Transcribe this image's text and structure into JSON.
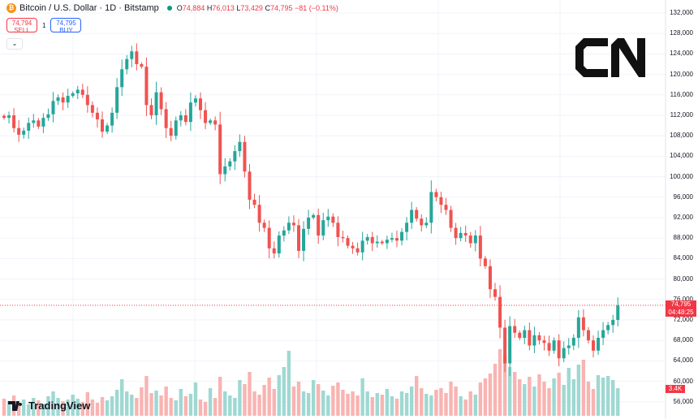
{
  "header": {
    "symbol_icon": "bitcoin-icon",
    "title": "Bitcoin / U.S. Dollar · 1D · Bitstamp",
    "market_status": "open",
    "ohlc": {
      "o_label": "O",
      "o": "74,884",
      "h_label": "H",
      "h": "76,013",
      "l_label": "L",
      "l": "73,429",
      "c_label": "C",
      "c": "74,795",
      "change": "−81 (−0.11%)"
    }
  },
  "trade": {
    "sell_price": "74,794",
    "sell_label": "SELL",
    "spread": "1",
    "buy_price": "74,795",
    "buy_label": "BUY"
  },
  "price_axis": {
    "ticks": [
      "132,000",
      "128,000",
      "124,000",
      "120,000",
      "116,000",
      "112,000",
      "108,000",
      "104,000",
      "100,000",
      "96,000",
      "92,000",
      "88,000",
      "84,000",
      "80,000",
      "76,000",
      "72,000",
      "68,000",
      "64,000",
      "60,000",
      "56,000"
    ],
    "last_price": "74,795",
    "countdown": "04:48:25",
    "volume_label": "3.4K"
  },
  "branding": {
    "tradingview": "TradingView",
    "watermark": "CN"
  },
  "colors": {
    "up": "#26a69a",
    "down": "#ef5350",
    "up_volume": "#9fd8d2",
    "down_volume": "#f8b4b2"
  },
  "chart_data": {
    "type": "candlestick",
    "interval": "1D",
    "ylim": [
      54000,
      134000
    ],
    "closes": [
      111500,
      112000,
      109500,
      108200,
      109000,
      110500,
      111000,
      109800,
      111500,
      112200,
      114800,
      115500,
      114500,
      115800,
      116300,
      117000,
      116000,
      114000,
      112500,
      111200,
      108800,
      110000,
      112500,
      117500,
      121000,
      123000,
      124500,
      122000,
      121500,
      114000,
      112000,
      116500,
      113200,
      109500,
      108000,
      111000,
      112000,
      110700,
      114500,
      115300,
      113000,
      110500,
      111000,
      110200,
      100500,
      102000,
      103000,
      105000,
      106800,
      101000,
      95500,
      94500,
      91000,
      90000,
      86000,
      85000,
      88500,
      89500,
      91000,
      90500,
      85500,
      89800,
      92000,
      92500,
      88500,
      91500,
      92200,
      91000,
      88200,
      88000,
      86500,
      86000,
      85200,
      87500,
      88200,
      87000,
      87300,
      87000,
      87700,
      88000,
      87500,
      89200,
      91000,
      93500,
      91800,
      90500,
      91000,
      97000,
      96000,
      94500,
      93500,
      90000,
      88000,
      89000,
      88500,
      87000,
      88500,
      84000,
      82500,
      78000,
      76500,
      70500,
      63500,
      70800,
      69500,
      68500,
      70000,
      67000,
      69000,
      68000,
      67500,
      66000,
      68000,
      64500,
      66500,
      67000,
      68500,
      72500,
      70000,
      68000,
      66000,
      68500,
      70000,
      71000,
      72000,
      74795
    ],
    "volumes_k": [
      2.1,
      1.8,
      2.5,
      1.6,
      2.0,
      1.4,
      2.2,
      1.9,
      1.5,
      2.4,
      3.0,
      2.2,
      1.8,
      2.0,
      2.6,
      2.1,
      1.7,
      2.9,
      2.0,
      1.6,
      2.3,
      1.9,
      2.4,
      3.2,
      4.5,
      3.0,
      2.6,
      2.2,
      3.5,
      4.9,
      2.8,
      3.1,
      2.5,
      3.6,
      2.2,
      1.9,
      3.3,
      2.4,
      2.7,
      4.1,
      2.0,
      1.7,
      3.4,
      2.2,
      4.8,
      3.0,
      2.5,
      2.2,
      4.4,
      3.9,
      5.4,
      3.0,
      2.6,
      3.8,
      4.7,
      3.3,
      5.0,
      6.0,
      8.0,
      3.6,
      4.2,
      3.0,
      2.8,
      4.4,
      3.9,
      3.1,
      2.5,
      3.7,
      4.1,
      3.2,
      2.7,
      3.0,
      2.5,
      4.6,
      3.0,
      2.3,
      2.8,
      2.6,
      3.3,
      2.4,
      2.1,
      3.0,
      2.8,
      3.6,
      4.9,
      3.4,
      2.7,
      2.5,
      3.2,
      3.4,
      2.8,
      4.2,
      3.6,
      2.4,
      2.0,
      3.0,
      2.6,
      4.1,
      4.6,
      5.2,
      6.4,
      8.2,
      7.6,
      6.0,
      5.4,
      4.5,
      3.9,
      4.8,
      3.6,
      5.1,
      4.2,
      3.4,
      4.6,
      5.3,
      3.8,
      5.9,
      4.5,
      6.3,
      6.9,
      4.2,
      3.3,
      5.0,
      4.7,
      4.9,
      4.4,
      3.4
    ]
  }
}
